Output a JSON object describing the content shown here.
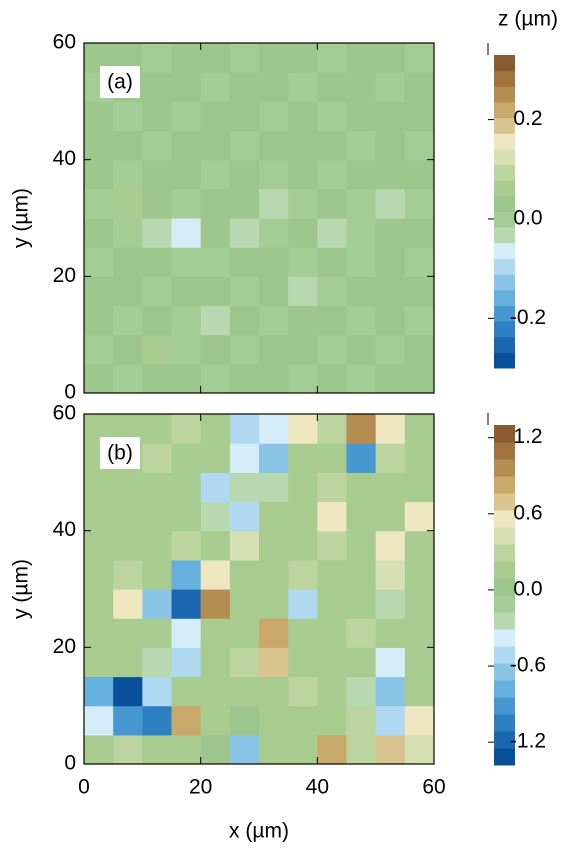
{
  "chart_data": [
    {
      "type": "contour",
      "panel_label": "(a)",
      "ylabel": "y (µm)",
      "xticklabels": false,
      "xlim": [
        0,
        60
      ],
      "ylim": [
        0,
        60
      ],
      "xticks": [
        0,
        20,
        40,
        60
      ],
      "yticks": [
        0,
        20,
        40,
        60
      ],
      "x": [
        2.5,
        7.5,
        12.5,
        17.5,
        22.5,
        27.5,
        32.5,
        37.5,
        42.5,
        47.5,
        52.5,
        57.5
      ],
      "y": [
        2.5,
        7.5,
        12.5,
        17.5,
        22.5,
        27.5,
        32.5,
        37.5,
        42.5,
        47.5,
        52.5,
        57.5
      ],
      "z": [
        [
          0.02,
          0.01,
          0.03,
          0.02,
          0.01,
          0.02,
          0.03,
          0.01,
          0.02,
          0.01,
          0.02,
          0.03
        ],
        [
          0.01,
          0.02,
          0.06,
          0.01,
          0.02,
          0.01,
          0.02,
          0.03,
          0.01,
          0.02,
          0.01,
          0.02
        ],
        [
          0.03,
          0.01,
          0.02,
          0.01,
          -0.02,
          0.02,
          0.01,
          0.02,
          0.03,
          0.01,
          0.02,
          0.01
        ],
        [
          0.02,
          0.02,
          0.01,
          0.03,
          0.02,
          0.01,
          0.02,
          -0.02,
          0.01,
          0.02,
          0.03,
          0.02
        ],
        [
          0.01,
          0.03,
          0.02,
          0.01,
          0.01,
          0.03,
          0.02,
          0.01,
          0.02,
          0.01,
          0.02,
          0.01
        ],
        [
          0.02,
          0.01,
          -0.04,
          -0.05,
          0.02,
          -0.03,
          0.01,
          0.02,
          -0.03,
          0.01,
          0.02,
          0.02
        ],
        [
          0.01,
          0.05,
          0.02,
          0.01,
          0.03,
          0.02,
          -0.02,
          0.01,
          0.02,
          0.01,
          -0.02,
          0.01
        ],
        [
          0.02,
          0.01,
          0.02,
          0.03,
          0.01,
          0.02,
          0.01,
          0.02,
          0.01,
          0.03,
          0.02,
          0.02
        ],
        [
          0.03,
          0.02,
          0.01,
          0.02,
          0.02,
          0.01,
          0.03,
          0.02,
          0.02,
          0.01,
          0.02,
          0.01
        ],
        [
          0.02,
          0.01,
          0.02,
          0.01,
          0.03,
          0.02,
          0.01,
          0.02,
          0.01,
          0.02,
          0.03,
          0.02
        ],
        [
          0.01,
          0.02,
          0.03,
          0.02,
          0.01,
          0.02,
          0.02,
          0.01,
          0.02,
          0.03,
          0.01,
          0.02
        ],
        [
          0.02,
          0.03,
          0.01,
          0.02,
          0.02,
          0.01,
          0.02,
          0.03,
          0.01,
          0.02,
          0.02,
          0.01
        ]
      ],
      "colorbar": {
        "title": "z (µm)",
        "clim": [
          -0.3,
          0.33
        ],
        "ticks": [
          -0.2,
          {
            "value": 0,
            "label": "0.0"
          },
          0.2
        ],
        "colors": [
          "#08509a",
          "#1a67b0",
          "#2c80c2",
          "#4798d0",
          "#66b0dd",
          "#8ac5e8",
          "#afd9f1",
          "#d5edf8",
          "#b8d9b0",
          "#a4cc95",
          "#9cc68c",
          "#a8cb90",
          "#bcd49e",
          "#d7e0b2",
          "#eee6c0",
          "#d9c48f",
          "#c9a96b",
          "#b58d52",
          "#9f7240",
          "#8b5b30"
        ]
      }
    },
    {
      "type": "contour",
      "panel_label": "(b)",
      "ylabel": "y (µm)",
      "xlabel": "x (µm)",
      "xticklabels": true,
      "xlim": [
        0,
        60
      ],
      "ylim": [
        0,
        60
      ],
      "xticks": [
        0,
        20,
        40,
        60
      ],
      "yticks": [
        0,
        20,
        40,
        60
      ],
      "x": [
        2.5,
        7.5,
        12.5,
        17.5,
        22.5,
        27.5,
        32.5,
        37.5,
        42.5,
        47.5,
        52.5,
        57.5
      ],
      "y": [
        2.5,
        7.5,
        12.5,
        17.5,
        22.5,
        27.5,
        32.5,
        37.5,
        42.5,
        47.5,
        52.5,
        57.5
      ],
      "z": [
        [
          0.1,
          0.3,
          0.2,
          0.1,
          0,
          -0.6,
          0.1,
          0.1,
          0.8,
          0.3,
          0.7,
          0.4
        ],
        [
          -0.4,
          -0.9,
          -1.1,
          0.8,
          0.1,
          0,
          0.2,
          0.1,
          0.1,
          0.3,
          -0.5,
          0.6
        ],
        [
          -0.8,
          -1.3,
          -0.5,
          0.1,
          0.1,
          0.2,
          0.2,
          0.3,
          0.1,
          -0.2,
          -0.6,
          0.2
        ],
        [
          0.2,
          0.1,
          -0.3,
          -0.5,
          0.1,
          0.3,
          0.7,
          0.1,
          0.2,
          0.1,
          -0.4,
          0.1
        ],
        [
          0.1,
          0.2,
          0.1,
          -0.4,
          0.2,
          0.1,
          0.8,
          0.2,
          0.1,
          0.3,
          0.2,
          0.1
        ],
        [
          0.1,
          0.6,
          -0.6,
          -1.2,
          1.0,
          0.1,
          0.2,
          -0.5,
          0.1,
          0.2,
          -0.3,
          0.2
        ],
        [
          0.2,
          0.3,
          0.1,
          -0.8,
          0.5,
          0.1,
          0.2,
          0.3,
          0.2,
          0.1,
          0.4,
          0.1
        ],
        [
          0.1,
          0.1,
          0.2,
          0.3,
          0.1,
          0.4,
          0.2,
          0.1,
          0.3,
          0.1,
          0.5,
          0.2
        ],
        [
          0.1,
          0.2,
          0.1,
          0.1,
          -0.3,
          -0.5,
          0.2,
          0.1,
          0.6,
          0.2,
          0.1,
          0.6
        ],
        [
          0.2,
          0.1,
          0.1,
          0.2,
          -0.5,
          -0.2,
          -0.3,
          0.2,
          0.3,
          0.2,
          0.1,
          0.2
        ],
        [
          0.1,
          0.2,
          0.3,
          0.1,
          0.2,
          -0.4,
          -0.6,
          0.1,
          0.2,
          -0.9,
          0.3,
          0.1
        ],
        [
          0.2,
          0.1,
          0.1,
          0.3,
          0.2,
          -0.5,
          -0.4,
          0.5,
          0.3,
          0.9,
          0.5,
          0.2
        ]
      ],
      "colorbar": {
        "clim": [
          -1.38,
          1.3
        ],
        "ticks": [
          -1.2,
          -0.6,
          {
            "value": 0,
            "label": "0.0"
          },
          0.6,
          1.2
        ],
        "colors": [
          "#08509a",
          "#1a67b0",
          "#2c80c2",
          "#4798d0",
          "#66b0dd",
          "#8ac5e8",
          "#afd9f1",
          "#d5edf8",
          "#b8d9b0",
          "#a4cc95",
          "#9cc68c",
          "#a8cb90",
          "#bcd49e",
          "#d7e0b2",
          "#eee6c0",
          "#d9c48f",
          "#c9a96b",
          "#b58d52",
          "#9f7240",
          "#8b5b30"
        ]
      }
    }
  ]
}
